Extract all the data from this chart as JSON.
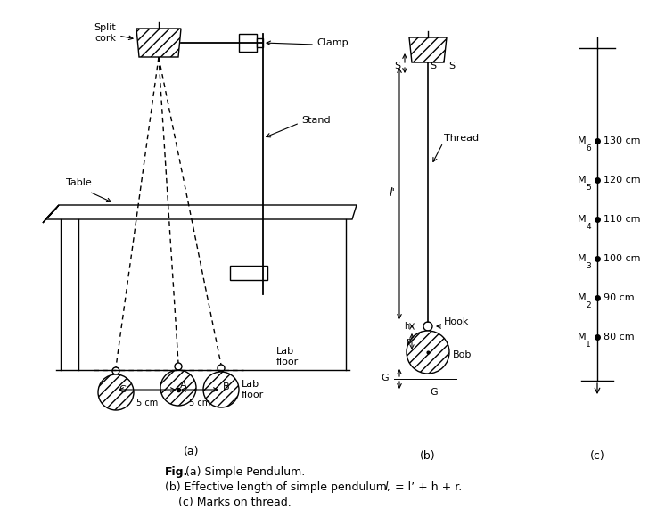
{
  "bg_color": "#ffffff",
  "fig_width": 7.37,
  "fig_height": 5.81,
  "dpi": 100,
  "lw": 1.0,
  "fs_base": 8,
  "marks_subs": [
    "6",
    "5",
    "4",
    "3",
    "2",
    "1"
  ],
  "marks_values": [
    "130 cm",
    "120 cm",
    "110 cm",
    "100 cm",
    "90 cm",
    "80 cm"
  ],
  "caption_fig": "Fig.",
  "caption_a": " (a) Simple Pendulum.",
  "caption_b": "(b) Effective length of simple pendulum, ",
  "caption_b2": "l",
  "caption_b3": " = l’ + h + r.",
  "caption_c": "(c) Marks on thread."
}
